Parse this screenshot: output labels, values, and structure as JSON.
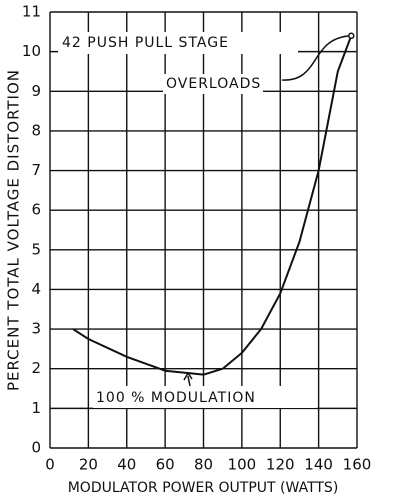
{
  "chart_data": {
    "type": "line",
    "annotations": [
      "42 PUSH PULL STAGE",
      "OVERLOADS",
      "100 % MODULATION"
    ],
    "xlabel": "MODULATOR POWER OUTPUT (WATTS)",
    "ylabel": "PERCENT TOTAL VOLTAGE DISTORTION",
    "x": [
      12,
      20,
      40,
      60,
      80,
      90,
      100,
      110,
      120,
      130,
      140,
      150,
      157
    ],
    "values": [
      3.0,
      2.75,
      2.3,
      1.95,
      1.85,
      2.0,
      2.4,
      3.0,
      3.9,
      5.2,
      7.0,
      9.5,
      10.4
    ],
    "color": "#111111",
    "xlim": [
      0,
      160
    ],
    "xticks": [
      0,
      20,
      40,
      60,
      80,
      100,
      120,
      140,
      160
    ],
    "ylim": [
      0,
      11
    ],
    "yticks": [
      0,
      1,
      2,
      3,
      4,
      5,
      6,
      7,
      8,
      9,
      10,
      11
    ],
    "grid": true
  }
}
